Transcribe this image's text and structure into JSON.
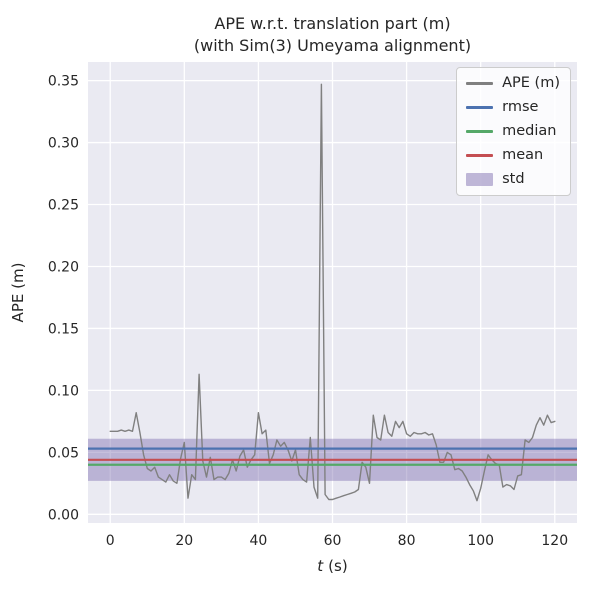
{
  "figure": {
    "title_line1": "APE w.r.t. translation part (m)",
    "title_line2": "(with Sim(3) Umeyama alignment)",
    "xlabel_var": "t",
    "xlabel_unit": "(s)",
    "ylabel": "APE (m)"
  },
  "legend": {
    "entries": [
      {
        "label": "APE (m)",
        "color": "#808080",
        "type": "line"
      },
      {
        "label": "rmse",
        "color": "#4c72b0",
        "type": "line"
      },
      {
        "label": "median",
        "color": "#55a868",
        "type": "line"
      },
      {
        "label": "mean",
        "color": "#c44e52",
        "type": "line"
      },
      {
        "label": "std",
        "color": "#8172b2",
        "type": "patch"
      }
    ]
  },
  "colors": {
    "plot_background": "#eaeaf2",
    "grid": "#ffffff",
    "ape_line": "#808080",
    "rmse": "#4c72b0",
    "median": "#55a868",
    "mean": "#c44e52",
    "std_band": "#8172b2",
    "text": "#262626"
  },
  "chart_data": {
    "type": "line",
    "title": "APE w.r.t. translation part (m)\n(with Sim(3) Umeyama alignment)",
    "xlabel": "t (s)",
    "ylabel": "APE (m)",
    "xlim": [
      -6,
      126
    ],
    "ylim": [
      -0.007,
      0.365
    ],
    "xticks": [
      0,
      20,
      40,
      60,
      80,
      100,
      120
    ],
    "yticks": [
      0.0,
      0.05,
      0.1,
      0.15,
      0.2,
      0.25,
      0.3,
      0.35
    ],
    "grid": true,
    "legend_position": "upper right",
    "stats": {
      "rmse": 0.053,
      "median": 0.04,
      "mean": 0.044,
      "std": 0.017
    },
    "series": [
      {
        "name": "APE (m)",
        "x": [
          0,
          1,
          2,
          3,
          4,
          5,
          6,
          7,
          8,
          9,
          10,
          11,
          12,
          13,
          14,
          15,
          16,
          17,
          18,
          19,
          20,
          21,
          22,
          23,
          24,
          25,
          26,
          27,
          28,
          29,
          30,
          31,
          32,
          33,
          34,
          35,
          36,
          37,
          38,
          39,
          40,
          41,
          42,
          43,
          44,
          45,
          46,
          47,
          48,
          49,
          50,
          51,
          52,
          53,
          54,
          55,
          56,
          57,
          58,
          59,
          60,
          61,
          62,
          63,
          64,
          65,
          66,
          67,
          68,
          69,
          70,
          71,
          72,
          73,
          74,
          75,
          76,
          77,
          78,
          79,
          80,
          81,
          82,
          83,
          84,
          85,
          86,
          87,
          88,
          89,
          90,
          91,
          92,
          93,
          94,
          95,
          96,
          97,
          98,
          99,
          100,
          101,
          102,
          103,
          104,
          105,
          106,
          107,
          108,
          109,
          110,
          111,
          112,
          113,
          114,
          115,
          116,
          117,
          118,
          119,
          120
        ],
        "y": [
          0.067,
          0.067,
          0.067,
          0.068,
          0.067,
          0.068,
          0.067,
          0.082,
          0.066,
          0.048,
          0.037,
          0.035,
          0.038,
          0.03,
          0.028,
          0.026,
          0.032,
          0.027,
          0.025,
          0.045,
          0.058,
          0.013,
          0.032,
          0.028,
          0.113,
          0.043,
          0.03,
          0.046,
          0.028,
          0.03,
          0.03,
          0.028,
          0.033,
          0.044,
          0.035,
          0.047,
          0.052,
          0.038,
          0.044,
          0.048,
          0.082,
          0.065,
          0.068,
          0.041,
          0.048,
          0.06,
          0.055,
          0.058,
          0.052,
          0.043,
          0.052,
          0.032,
          0.028,
          0.026,
          0.062,
          0.022,
          0.013,
          0.347,
          0.016,
          0.012,
          0.012,
          0.013,
          0.014,
          0.015,
          0.016,
          0.017,
          0.018,
          0.02,
          0.042,
          0.038,
          0.025,
          0.08,
          0.062,
          0.06,
          0.08,
          0.066,
          0.063,
          0.075,
          0.07,
          0.075,
          0.065,
          0.063,
          0.066,
          0.065,
          0.065,
          0.066,
          0.064,
          0.065,
          0.056,
          0.042,
          0.042,
          0.05,
          0.048,
          0.036,
          0.037,
          0.035,
          0.03,
          0.024,
          0.019,
          0.011,
          0.021,
          0.035,
          0.048,
          0.044,
          0.041,
          0.04,
          0.022,
          0.024,
          0.023,
          0.02,
          0.031,
          0.032,
          0.06,
          0.058,
          0.062,
          0.072,
          0.078,
          0.072,
          0.08,
          0.074,
          0.075
        ]
      }
    ]
  }
}
